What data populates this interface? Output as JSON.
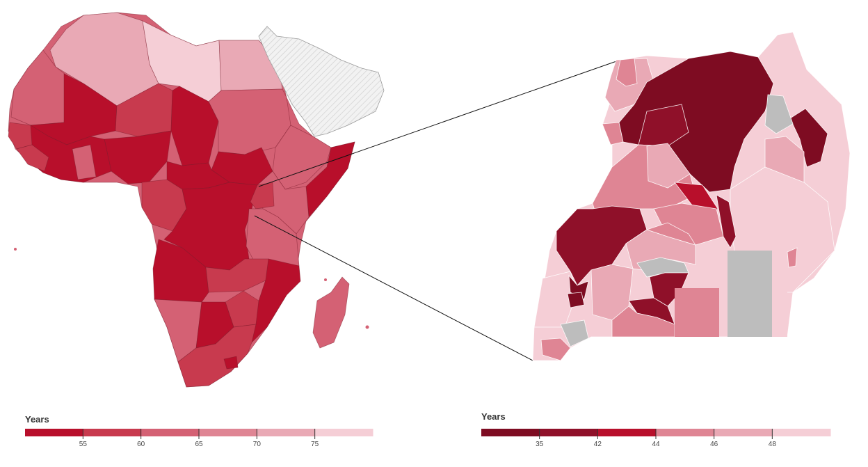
{
  "left_map": {
    "legend": {
      "title": "Years",
      "ticks": [
        "55",
        "60",
        "65",
        "70",
        "75"
      ],
      "colors": [
        "#b80f2b",
        "#c83a4e",
        "#d46174",
        "#df8594",
        "#e9a9b5",
        "#f5ced6"
      ]
    }
  },
  "right_map": {
    "legend": {
      "title": "Years",
      "ticks": [
        "35",
        "42",
        "44",
        "46",
        "48"
      ],
      "colors": [
        "#7e0c22",
        "#8f1029",
        "#b80f2b",
        "#df8594",
        "#e9a9b5",
        "#f5ced6"
      ]
    }
  },
  "colors": {
    "no_data": "#bdbdbd",
    "hatched_region": "#efefef",
    "connector_line": "#111111"
  }
}
